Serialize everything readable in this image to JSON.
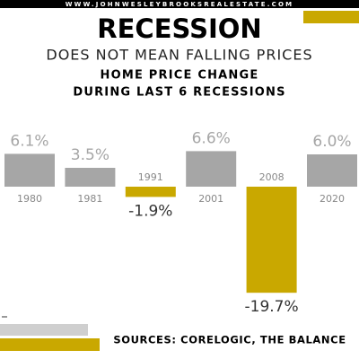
{
  "header": {
    "website": "WWW.JOHNWESLEYBROOKSREALESTATE.COM"
  },
  "chart_data": {
    "type": "bar",
    "title": "RECESSION",
    "subtitle": "DOES NOT MEAN FALLING PRICES",
    "chart_title": [
      "HOME PRICE CHANGE",
      "DURING LAST 6 RECESSIONS"
    ],
    "categories": [
      "1980",
      "1981",
      "1991",
      "2001",
      "2008",
      "2020"
    ],
    "values": [
      6.1,
      3.5,
      -1.9,
      6.6,
      -19.7,
      6.0
    ],
    "value_labels": [
      "6.1%",
      "3.5%",
      "-1.9%",
      "6.6%",
      "-19.7%",
      "6.0%"
    ],
    "colors": [
      "#a6a6a6",
      "#a6a6a6",
      "#c9a800",
      "#a6a6a6",
      "#c9a800",
      "#a6a6a6"
    ]
  },
  "footer": {
    "sources": "SOURCES: CORELOGIC, THE BALANCE"
  }
}
